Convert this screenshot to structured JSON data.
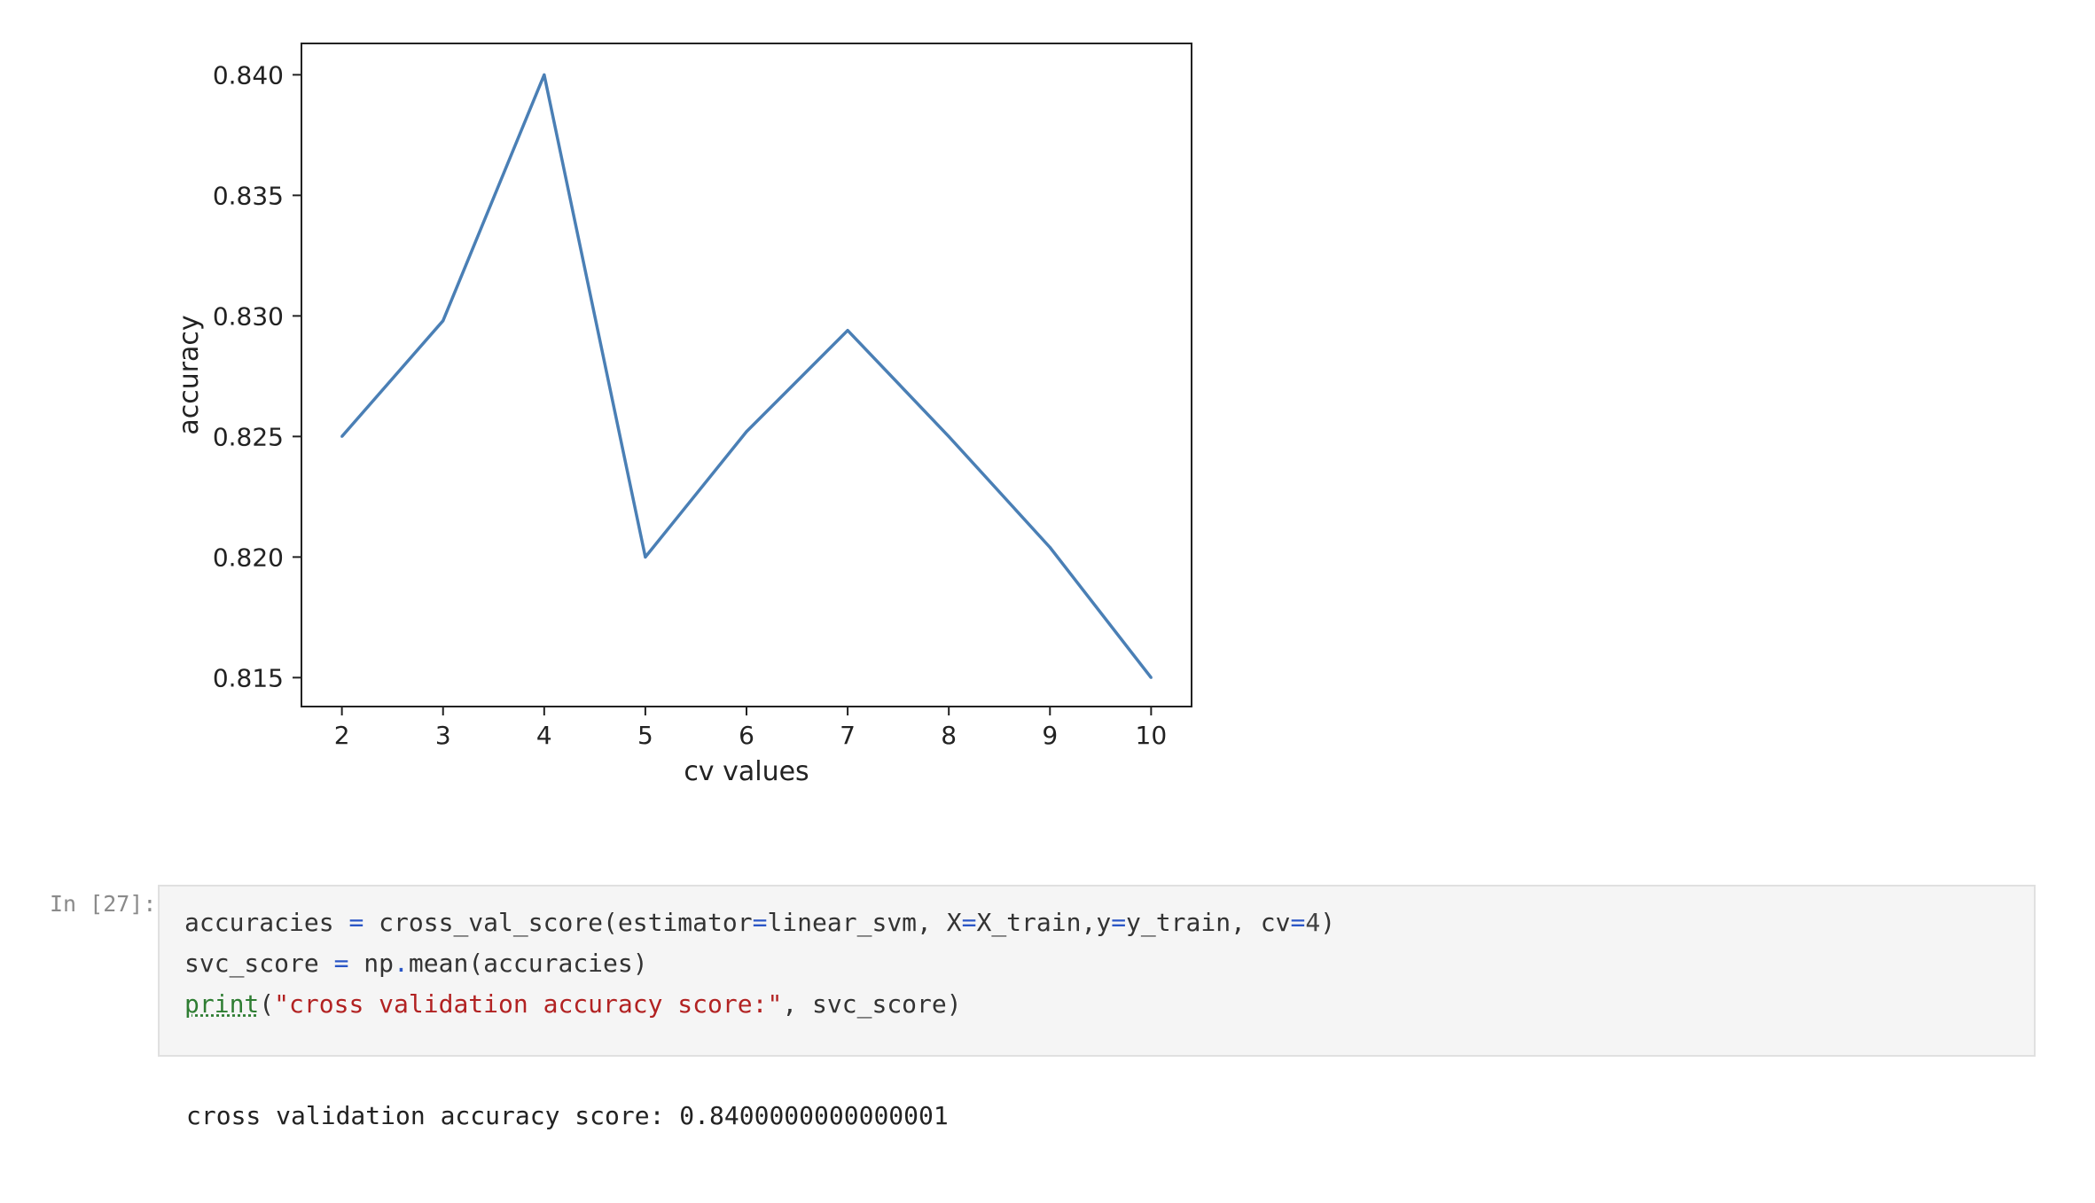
{
  "chart_data": {
    "type": "line",
    "title": "",
    "xlabel": "cv values",
    "ylabel": "accuracy",
    "x": [
      2,
      3,
      4,
      5,
      6,
      7,
      8,
      9,
      10
    ],
    "series": [
      {
        "values": [
          0.825,
          0.8298,
          0.84,
          0.82,
          0.8252,
          0.8294,
          0.825,
          0.8204,
          0.815
        ]
      }
    ],
    "xlim": [
      1.6,
      10.4
    ],
    "ylim": [
      0.8138,
      0.8413
    ],
    "xticks": [
      "2",
      "3",
      "4",
      "5",
      "6",
      "7",
      "8",
      "9",
      "10"
    ],
    "yticks": [
      "0.815",
      "0.820",
      "0.825",
      "0.830",
      "0.835",
      "0.840"
    ],
    "ytick_values": [
      0.815,
      0.82,
      0.825,
      0.83,
      0.835,
      0.84
    ],
    "grid": false,
    "line_color": "#4a7fb5"
  },
  "cell": {
    "prompt": "In [27]:",
    "code": {
      "line1": {
        "var": "accuracies ",
        "eq": "=",
        "call": " cross_val_score(estimator",
        "eq2": "=",
        "arg1": "linear_svm, X",
        "eq3": "=",
        "arg2": "X_train,y",
        "eq4": "=",
        "arg3": "y_train, cv",
        "eq5": "=",
        "num": "4",
        "close": ")"
      },
      "line2": {
        "var": "svc_score ",
        "eq": "=",
        "rest1": " np",
        "dot": ".",
        "fn": "mean",
        "rest2": "(accuracies)"
      },
      "line3": {
        "fn": "print",
        "open": "(",
        "str": "\"cross validation accuracy score:\"",
        "rest": ", svc_score)"
      }
    },
    "output": "cross validation accuracy score: 0.8400000000000001"
  }
}
